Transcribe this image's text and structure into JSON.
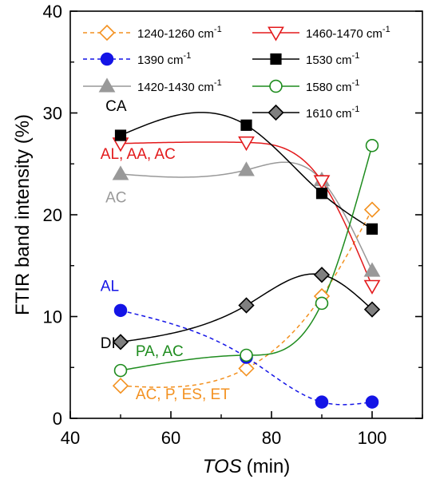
{
  "chart_data": {
    "type": "line",
    "xlabel_italic": "TOS",
    "xlabel_unit": "(min)",
    "ylabel": "FTIR band intensity (%)",
    "xlim": [
      40,
      110
    ],
    "ylim": [
      0,
      40
    ],
    "xticks": [
      40,
      60,
      80,
      100
    ],
    "yticks": [
      0,
      10,
      20,
      30,
      40
    ],
    "x": [
      50,
      75,
      90,
      100
    ],
    "legend_position": "top",
    "series": [
      {
        "name": "1240-1260 cm",
        "sup": "-1",
        "color": "#F39120",
        "marker": "diamond",
        "filled": false,
        "dashed": true,
        "values": [
          3.2,
          4.9,
          12.0,
          20.5
        ]
      },
      {
        "name": "1390 cm",
        "sup": "-1",
        "color": "#1414E6",
        "marker": "circle",
        "filled": true,
        "dashed": true,
        "values": [
          10.6,
          6.0,
          1.6,
          1.6
        ]
      },
      {
        "name": "1420-1430 cm",
        "sup": "-1",
        "color": "#999999",
        "marker": "triangle-up",
        "filled": true,
        "dashed": false,
        "values": [
          24.0,
          24.4,
          23.4,
          14.5
        ]
      },
      {
        "name": "1460-1470 cm",
        "sup": "-1",
        "color": "#E31A1C",
        "marker": "triangle-down",
        "filled": false,
        "dashed": false,
        "values": [
          27.0,
          27.1,
          23.3,
          13.0
        ]
      },
      {
        "name": "1530 cm",
        "sup": "-1",
        "color": "#000000",
        "marker": "square",
        "filled": true,
        "dashed": false,
        "values": [
          27.8,
          28.8,
          22.1,
          18.6
        ]
      },
      {
        "name": "1580 cm",
        "sup": "-1",
        "color": "#1E8C1E",
        "marker": "circle",
        "filled": false,
        "dashed": false,
        "values": [
          4.7,
          6.2,
          11.3,
          26.8
        ]
      },
      {
        "name": "1610 cm",
        "sup": "-1",
        "color": "#000000",
        "fillColor": "#808080",
        "marker": "diamond",
        "filled": true,
        "dashed": false,
        "values": [
          7.5,
          11.1,
          14.1,
          10.7
        ]
      }
    ],
    "annotations": [
      {
        "text": "CA",
        "color": "#000000",
        "x": 47,
        "y": 30.2
      },
      {
        "text": "AL, AA, AC",
        "color": "#E31A1C",
        "x": 46,
        "y": 25.5
      },
      {
        "text": "AC",
        "color": "#999999",
        "x": 47,
        "y": 21.2
      },
      {
        "text": "AL",
        "color": "#1414E6",
        "x": 46,
        "y": 12.5
      },
      {
        "text": "DI",
        "color": "#000000",
        "x": 46,
        "y": 6.9
      },
      {
        "text": "PA, AC",
        "color": "#1E8C1E",
        "x": 53,
        "y": 6.1
      },
      {
        "text": "AC, P, ES, ET",
        "color": "#F39120",
        "x": 53,
        "y": 1.9
      }
    ]
  }
}
